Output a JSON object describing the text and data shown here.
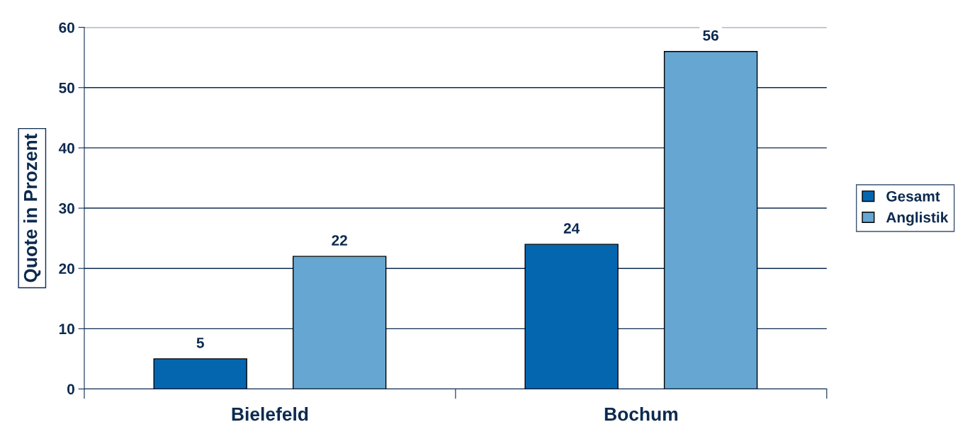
{
  "chart_data": {
    "type": "bar",
    "ylabel": "Quote in Prozent",
    "categories": [
      "Bielefeld",
      "Bochum"
    ],
    "series": [
      {
        "name": "Gesamt",
        "color": "#0566b0",
        "values": [
          5,
          24
        ]
      },
      {
        "name": "Anglistik",
        "color": "#66a6d2",
        "values": [
          22,
          56
        ]
      }
    ],
    "ylim": [
      0,
      60
    ],
    "yticks": [
      0,
      10,
      20,
      30,
      40,
      50,
      60
    ],
    "grid": "y",
    "legend": "right",
    "data_labels": true
  }
}
